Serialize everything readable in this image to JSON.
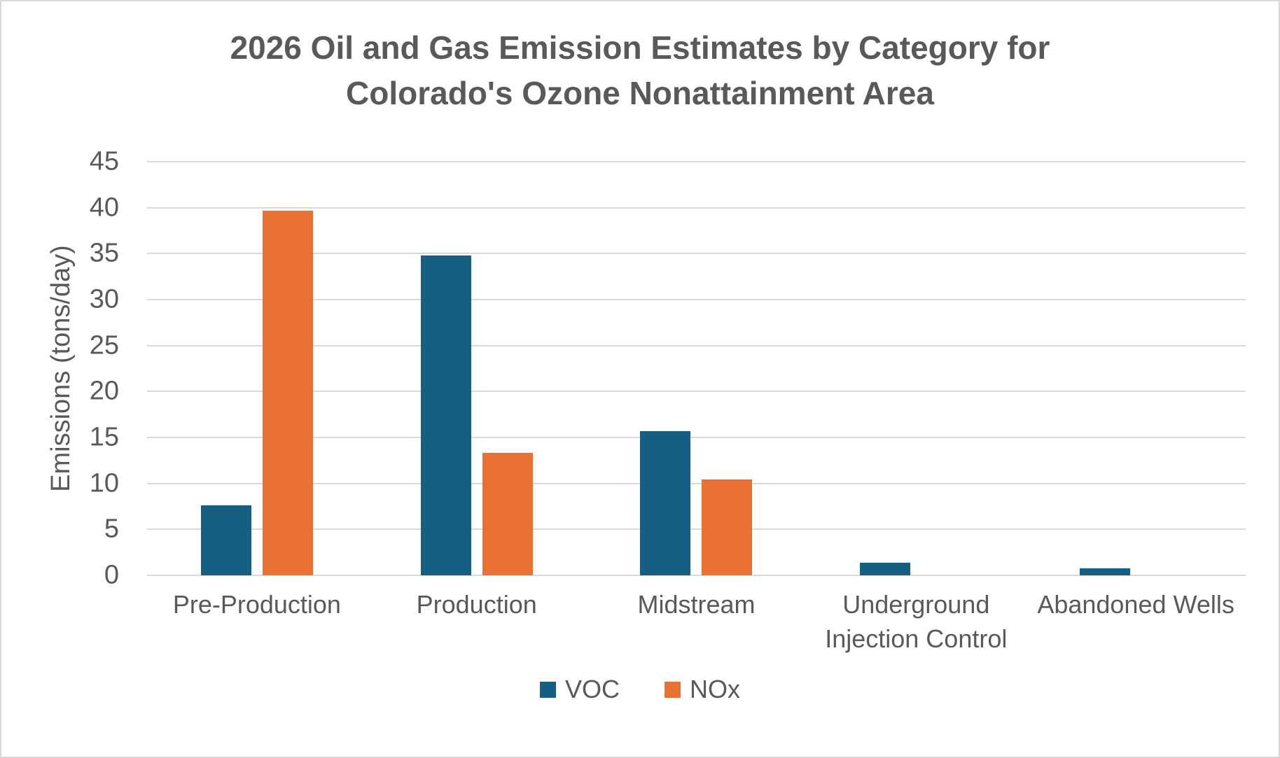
{
  "title": "2026 Oil and Gas Emission Estimates by Category for Colorado's Ozone Nonattainment Area",
  "colors": {
    "voc": "#156082",
    "nox": "#E97132",
    "text": "#595959",
    "gridline": "#D9D9D9",
    "background": "#FFFFFF"
  },
  "chart_data": {
    "type": "bar",
    "title": "2026 Oil and Gas Emission Estimates by Category for Colorado's Ozone Nonattainment Area",
    "categories": [
      "Pre-Production",
      "Production",
      "Midstream",
      "Underground Injection Control",
      "Abandoned Wells"
    ],
    "series": [
      {
        "name": "VOC",
        "color": "#156082",
        "values": [
          7.6,
          34.8,
          15.7,
          1.4,
          0.8
        ]
      },
      {
        "name": "NOx",
        "color": "#E97132",
        "values": [
          39.7,
          13.3,
          10.4,
          0,
          0
        ]
      }
    ],
    "xlabel": "",
    "ylabel": "Emissions (tons/day)",
    "ylim": [
      0,
      45
    ],
    "yticks": [
      45,
      40,
      35,
      30,
      25,
      20,
      15,
      10,
      5,
      0
    ],
    "ytick_step": 5,
    "grid": true,
    "legend_position": "bottom"
  }
}
